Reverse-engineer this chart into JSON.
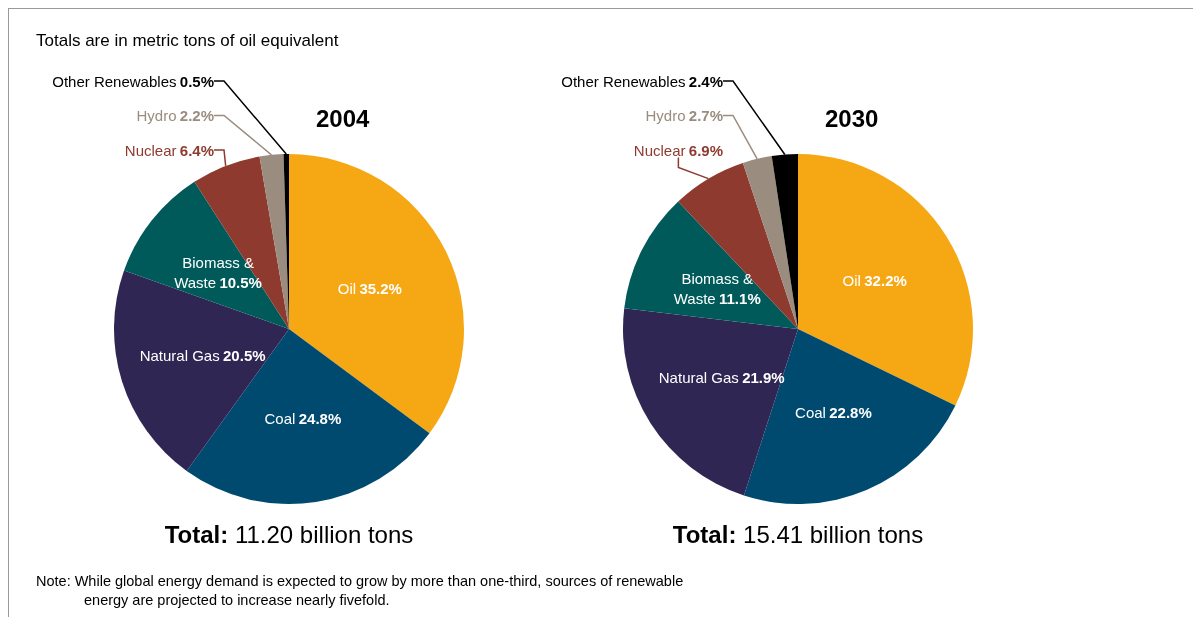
{
  "chart_data": [
    {
      "type": "pie",
      "title": "2004",
      "subtitle": "Totals are in metric tons of oil equivalent",
      "categories": [
        "Oil",
        "Coal",
        "Natural Gas",
        "Biomass & Waste",
        "Nuclear",
        "Hydro",
        "Other Renewables"
      ],
      "values": [
        35.2,
        24.8,
        20.5,
        10.5,
        6.4,
        2.2,
        0.5
      ],
      "value_labels": [
        "35.2%",
        "24.8%",
        "20.5%",
        "10.5%",
        "6.4%",
        "2.2%",
        "0.5%"
      ],
      "colors": [
        "#f5a814",
        "#004a70",
        "#2f2654",
        "#005a5a",
        "#8f3a2f",
        "#9a8c7e",
        "#000000"
      ],
      "annotations": [
        "Total: 11.20 billion tons",
        "Note: While global energy demand is expected to grow by more than one-third, sources of renewable energy are projected to increase nearly fivefold."
      ],
      "legend": false
    },
    {
      "type": "pie",
      "title": "2030",
      "categories": [
        "Oil",
        "Coal",
        "Natural Gas",
        "Biomass & Waste",
        "Nuclear",
        "Hydro",
        "Other Renewables"
      ],
      "values": [
        32.2,
        22.8,
        21.9,
        11.1,
        6.9,
        2.7,
        2.4
      ],
      "value_labels": [
        "32.2%",
        "22.8%",
        "21.9%",
        "11.1%",
        "6.9%",
        "2.7%",
        "2.4%"
      ],
      "colors": [
        "#f5a814",
        "#004a70",
        "#2f2654",
        "#005a5a",
        "#8f3a2f",
        "#9a8c7e",
        "#000000"
      ],
      "annotations": [
        "Total: 15.41 billion tons"
      ],
      "legend": false
    }
  ]
}
